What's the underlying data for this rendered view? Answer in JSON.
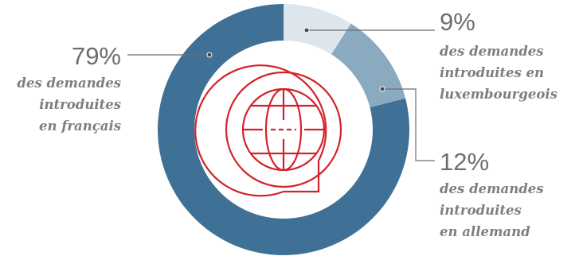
{
  "chart_data": {
    "type": "pie",
    "variant": "donut",
    "slices": [
      {
        "value": 9,
        "pct_label": "9%",
        "desc_lines": [
          "des demandes",
          "introduites en",
          "luxembourgeois"
        ],
        "color": "#dde6ec"
      },
      {
        "value": 12,
        "pct_label": "12%",
        "desc_lines": [
          "des demandes",
          "introduites",
          "en allemand"
        ],
        "color": "#8aaac0"
      },
      {
        "value": 79,
        "pct_label": "79%",
        "desc_lines": [
          "des demandes",
          "introduites",
          "en français"
        ],
        "color": "#3f7196"
      }
    ],
    "center_icon": "globe-speech-bubble-icon",
    "icon_color": "#d2232a"
  }
}
